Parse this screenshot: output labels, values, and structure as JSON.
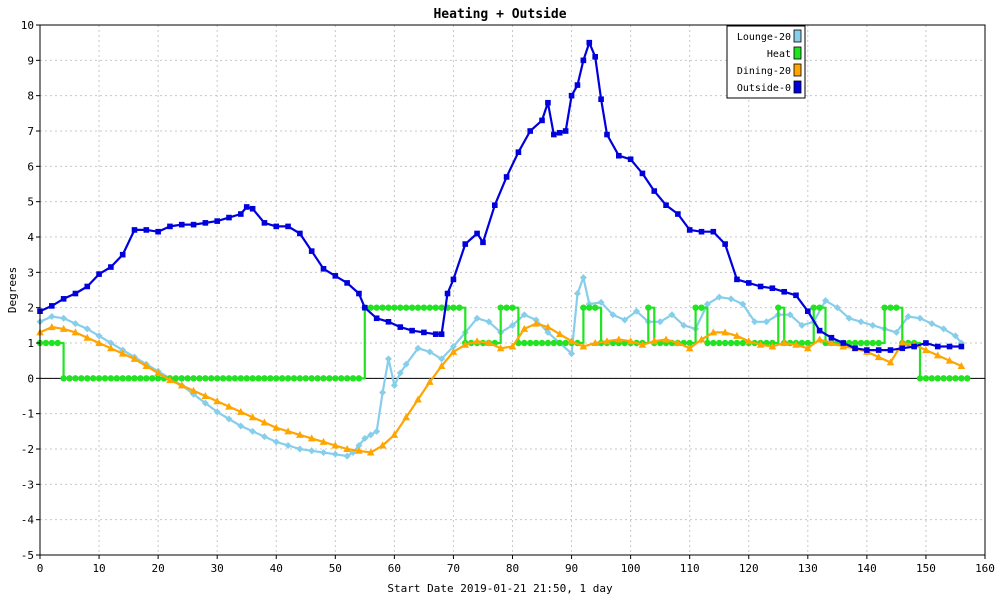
{
  "chart_data": {
    "type": "line",
    "title": "Heating + Outside",
    "xlabel": "Start Date 2019-01-21 21:50, 1 day",
    "ylabel": "Degrees",
    "xlim": [
      0,
      160
    ],
    "ylim": [
      -5,
      10
    ],
    "x_ticks": [
      0,
      10,
      20,
      30,
      40,
      50,
      60,
      70,
      80,
      90,
      100,
      110,
      120,
      130,
      140,
      150,
      160
    ],
    "y_ticks": [
      -5,
      -4,
      -3,
      -2,
      -1,
      0,
      1,
      2,
      3,
      4,
      5,
      6,
      7,
      8,
      9,
      10
    ],
    "grid": true,
    "legend_position": "top-right",
    "series": [
      {
        "name": "Lounge-20",
        "color": "#87ceeb",
        "marker": "diamond",
        "points": [
          [
            0,
            1.6
          ],
          [
            2,
            1.75
          ],
          [
            4,
            1.7
          ],
          [
            6,
            1.55
          ],
          [
            8,
            1.4
          ],
          [
            10,
            1.2
          ],
          [
            12,
            1.0
          ],
          [
            14,
            0.8
          ],
          [
            16,
            0.6
          ],
          [
            18,
            0.4
          ],
          [
            20,
            0.2
          ],
          [
            22,
            0.0
          ],
          [
            24,
            -0.2
          ],
          [
            26,
            -0.45
          ],
          [
            28,
            -0.7
          ],
          [
            30,
            -0.95
          ],
          [
            32,
            -1.15
          ],
          [
            34,
            -1.35
          ],
          [
            36,
            -1.5
          ],
          [
            38,
            -1.65
          ],
          [
            40,
            -1.8
          ],
          [
            42,
            -1.9
          ],
          [
            44,
            -2.0
          ],
          [
            46,
            -2.05
          ],
          [
            48,
            -2.1
          ],
          [
            50,
            -2.15
          ],
          [
            52,
            -2.2
          ],
          [
            53,
            -2.1
          ],
          [
            54,
            -1.9
          ],
          [
            55,
            -1.7
          ],
          [
            56,
            -1.6
          ],
          [
            57,
            -1.5
          ],
          [
            58,
            -0.4
          ],
          [
            59,
            0.55
          ],
          [
            60,
            -0.2
          ],
          [
            61,
            0.15
          ],
          [
            62,
            0.4
          ],
          [
            64,
            0.85
          ],
          [
            66,
            0.75
          ],
          [
            68,
            0.55
          ],
          [
            70,
            0.9
          ],
          [
            72,
            1.3
          ],
          [
            74,
            1.7
          ],
          [
            76,
            1.6
          ],
          [
            78,
            1.3
          ],
          [
            80,
            1.5
          ],
          [
            82,
            1.8
          ],
          [
            84,
            1.65
          ],
          [
            86,
            1.3
          ],
          [
            88,
            1.0
          ],
          [
            90,
            0.7
          ],
          [
            91,
            2.4
          ],
          [
            92,
            2.85
          ],
          [
            93,
            2.1
          ],
          [
            95,
            2.15
          ],
          [
            97,
            1.8
          ],
          [
            99,
            1.65
          ],
          [
            101,
            1.9
          ],
          [
            103,
            1.6
          ],
          [
            105,
            1.6
          ],
          [
            107,
            1.8
          ],
          [
            109,
            1.5
          ],
          [
            111,
            1.4
          ],
          [
            113,
            2.1
          ],
          [
            115,
            2.3
          ],
          [
            117,
            2.25
          ],
          [
            119,
            2.1
          ],
          [
            121,
            1.6
          ],
          [
            123,
            1.6
          ],
          [
            125,
            1.8
          ],
          [
            127,
            1.8
          ],
          [
            129,
            1.5
          ],
          [
            131,
            1.6
          ],
          [
            133,
            2.2
          ],
          [
            135,
            2.0
          ],
          [
            137,
            1.7
          ],
          [
            139,
            1.6
          ],
          [
            141,
            1.5
          ],
          [
            143,
            1.4
          ],
          [
            145,
            1.3
          ],
          [
            147,
            1.75
          ],
          [
            149,
            1.7
          ],
          [
            151,
            1.55
          ],
          [
            153,
            1.4
          ],
          [
            155,
            1.2
          ],
          [
            156,
            1.0
          ]
        ]
      },
      {
        "name": "Heat",
        "color": "#22e322",
        "marker": "circle",
        "points": [
          [
            0,
            1
          ],
          [
            4,
            1
          ],
          [
            4,
            0
          ],
          [
            55,
            0
          ],
          [
            55,
            2
          ],
          [
            72,
            2
          ],
          [
            72,
            1
          ],
          [
            78,
            1
          ],
          [
            78,
            2
          ],
          [
            81,
            2
          ],
          [
            81,
            1
          ],
          [
            92,
            1
          ],
          [
            92,
            2
          ],
          [
            95,
            2
          ],
          [
            95,
            1
          ],
          [
            103,
            1
          ],
          [
            103,
            2
          ],
          [
            104,
            2
          ],
          [
            104,
            1
          ],
          [
            111,
            1
          ],
          [
            111,
            2
          ],
          [
            113,
            2
          ],
          [
            113,
            1
          ],
          [
            125,
            1
          ],
          [
            125,
            2
          ],
          [
            126,
            2
          ],
          [
            126,
            1
          ],
          [
            131,
            1
          ],
          [
            131,
            2
          ],
          [
            133,
            2
          ],
          [
            133,
            1
          ],
          [
            143,
            1
          ],
          [
            143,
            2
          ],
          [
            146,
            2
          ],
          [
            146,
            1
          ],
          [
            149,
            1
          ],
          [
            149,
            0
          ],
          [
            157,
            0
          ]
        ]
      },
      {
        "name": "Dining-20",
        "color": "#ffa500",
        "marker": "triangle",
        "points": [
          [
            0,
            1.3
          ],
          [
            2,
            1.45
          ],
          [
            4,
            1.4
          ],
          [
            6,
            1.3
          ],
          [
            8,
            1.15
          ],
          [
            10,
            1.0
          ],
          [
            12,
            0.85
          ],
          [
            14,
            0.7
          ],
          [
            16,
            0.55
          ],
          [
            18,
            0.35
          ],
          [
            20,
            0.15
          ],
          [
            22,
            -0.05
          ],
          [
            24,
            -0.2
          ],
          [
            26,
            -0.35
          ],
          [
            28,
            -0.5
          ],
          [
            30,
            -0.65
          ],
          [
            32,
            -0.8
          ],
          [
            34,
            -0.95
          ],
          [
            36,
            -1.1
          ],
          [
            38,
            -1.25
          ],
          [
            40,
            -1.4
          ],
          [
            42,
            -1.5
          ],
          [
            44,
            -1.6
          ],
          [
            46,
            -1.7
          ],
          [
            48,
            -1.8
          ],
          [
            50,
            -1.9
          ],
          [
            52,
            -2.0
          ],
          [
            54,
            -2.05
          ],
          [
            56,
            -2.1
          ],
          [
            58,
            -1.9
          ],
          [
            60,
            -1.6
          ],
          [
            62,
            -1.1
          ],
          [
            64,
            -0.6
          ],
          [
            66,
            -0.1
          ],
          [
            68,
            0.35
          ],
          [
            70,
            0.75
          ],
          [
            72,
            0.95
          ],
          [
            74,
            1.05
          ],
          [
            76,
            1.0
          ],
          [
            78,
            0.85
          ],
          [
            80,
            0.9
          ],
          [
            82,
            1.4
          ],
          [
            84,
            1.55
          ],
          [
            86,
            1.45
          ],
          [
            88,
            1.25
          ],
          [
            90,
            1.05
          ],
          [
            92,
            0.9
          ],
          [
            94,
            1.0
          ],
          [
            96,
            1.05
          ],
          [
            98,
            1.1
          ],
          [
            100,
            1.05
          ],
          [
            102,
            0.95
          ],
          [
            104,
            1.05
          ],
          [
            106,
            1.1
          ],
          [
            108,
            1.0
          ],
          [
            110,
            0.85
          ],
          [
            112,
            1.1
          ],
          [
            114,
            1.3
          ],
          [
            116,
            1.3
          ],
          [
            118,
            1.2
          ],
          [
            120,
            1.05
          ],
          [
            122,
            0.95
          ],
          [
            124,
            0.9
          ],
          [
            126,
            1.0
          ],
          [
            128,
            0.95
          ],
          [
            130,
            0.85
          ],
          [
            132,
            1.1
          ],
          [
            134,
            1.0
          ],
          [
            136,
            0.9
          ],
          [
            138,
            0.85
          ],
          [
            140,
            0.75
          ],
          [
            142,
            0.6
          ],
          [
            144,
            0.45
          ],
          [
            146,
            1.0
          ],
          [
            148,
            0.95
          ],
          [
            150,
            0.8
          ],
          [
            152,
            0.65
          ],
          [
            154,
            0.5
          ],
          [
            156,
            0.35
          ]
        ]
      },
      {
        "name": "Outside-0",
        "color": "#0000dd",
        "marker": "square",
        "points": [
          [
            0,
            1.9
          ],
          [
            2,
            2.05
          ],
          [
            4,
            2.25
          ],
          [
            6,
            2.4
          ],
          [
            8,
            2.6
          ],
          [
            10,
            2.95
          ],
          [
            12,
            3.15
          ],
          [
            14,
            3.5
          ],
          [
            16,
            4.2
          ],
          [
            18,
            4.2
          ],
          [
            20,
            4.15
          ],
          [
            22,
            4.3
          ],
          [
            24,
            4.35
          ],
          [
            26,
            4.35
          ],
          [
            28,
            4.4
          ],
          [
            30,
            4.45
          ],
          [
            32,
            4.55
          ],
          [
            34,
            4.65
          ],
          [
            35,
            4.85
          ],
          [
            36,
            4.8
          ],
          [
            38,
            4.4
          ],
          [
            40,
            4.3
          ],
          [
            42,
            4.3
          ],
          [
            44,
            4.1
          ],
          [
            46,
            3.6
          ],
          [
            48,
            3.1
          ],
          [
            50,
            2.9
          ],
          [
            52,
            2.7
          ],
          [
            54,
            2.4
          ],
          [
            55,
            2.0
          ],
          [
            57,
            1.7
          ],
          [
            59,
            1.6
          ],
          [
            61,
            1.45
          ],
          [
            63,
            1.35
          ],
          [
            65,
            1.3
          ],
          [
            67,
            1.25
          ],
          [
            68,
            1.25
          ],
          [
            69,
            2.4
          ],
          [
            70,
            2.8
          ],
          [
            72,
            3.8
          ],
          [
            74,
            4.1
          ],
          [
            75,
            3.85
          ],
          [
            77,
            4.9
          ],
          [
            79,
            5.7
          ],
          [
            81,
            6.4
          ],
          [
            83,
            7.0
          ],
          [
            85,
            7.3
          ],
          [
            86,
            7.8
          ],
          [
            87,
            6.9
          ],
          [
            88,
            6.95
          ],
          [
            89,
            7.0
          ],
          [
            90,
            8.0
          ],
          [
            91,
            8.3
          ],
          [
            92,
            9.0
          ],
          [
            93,
            9.5
          ],
          [
            94,
            9.1
          ],
          [
            95,
            7.9
          ],
          [
            96,
            6.9
          ],
          [
            98,
            6.3
          ],
          [
            100,
            6.2
          ],
          [
            102,
            5.8
          ],
          [
            104,
            5.3
          ],
          [
            106,
            4.9
          ],
          [
            108,
            4.65
          ],
          [
            110,
            4.2
          ],
          [
            112,
            4.15
          ],
          [
            114,
            4.15
          ],
          [
            116,
            3.8
          ],
          [
            118,
            2.8
          ],
          [
            120,
            2.7
          ],
          [
            122,
            2.6
          ],
          [
            124,
            2.55
          ],
          [
            126,
            2.45
          ],
          [
            128,
            2.35
          ],
          [
            130,
            1.9
          ],
          [
            132,
            1.35
          ],
          [
            134,
            1.15
          ],
          [
            136,
            1.0
          ],
          [
            138,
            0.85
          ],
          [
            140,
            0.8
          ],
          [
            142,
            0.8
          ],
          [
            144,
            0.8
          ],
          [
            146,
            0.85
          ],
          [
            148,
            0.9
          ],
          [
            150,
            1.0
          ],
          [
            152,
            0.9
          ],
          [
            154,
            0.9
          ],
          [
            156,
            0.9
          ]
        ]
      }
    ]
  }
}
